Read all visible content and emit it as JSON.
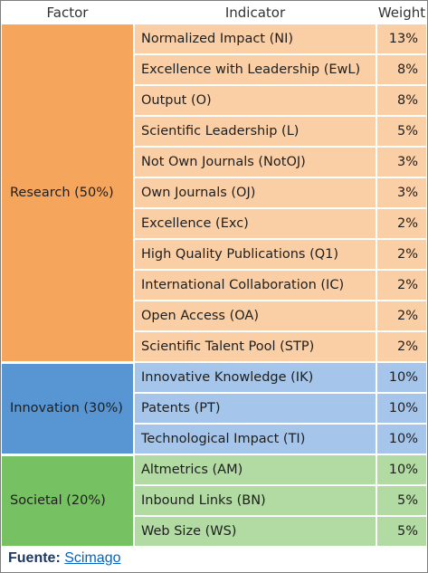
{
  "headers": {
    "factor": "Factor",
    "indicator": "Indicator",
    "weight": "Weight"
  },
  "colors": {
    "research_factor": "#f6a55c",
    "research_rows": "#fbcfa6",
    "innovation_factor": "#5796d2",
    "innovation_rows": "#a5c6ea",
    "societal_factor": "#76c161",
    "societal_rows": "#b1dba2",
    "source_label": "#1f3864",
    "source_link": "#0563c1"
  },
  "groups": [
    {
      "factor": "Research (50%)",
      "rows": [
        {
          "indicator": "Normalized Impact (NI)",
          "weight": "13%"
        },
        {
          "indicator": "Excellence with Leadership (EwL)",
          "weight": "8%"
        },
        {
          "indicator": "Output (O)",
          "weight": "8%"
        },
        {
          "indicator": "Scientific Leadership (L)",
          "weight": "5%"
        },
        {
          "indicator": "Not Own Journals (NotOJ)",
          "weight": "3%"
        },
        {
          "indicator": "Own Journals (OJ)",
          "weight": "3%"
        },
        {
          "indicator": "Excellence (Exc)",
          "weight": "2%"
        },
        {
          "indicator": "High Quality Publications (Q1)",
          "weight": "2%"
        },
        {
          "indicator": "International Collaboration (IC)",
          "weight": "2%"
        },
        {
          "indicator": "Open Access (OA)",
          "weight": "2%"
        },
        {
          "indicator": "Scientific Talent Pool (STP)",
          "weight": "2%"
        }
      ]
    },
    {
      "factor": "Innovation (30%)",
      "rows": [
        {
          "indicator": "Innovative Knowledge (IK)",
          "weight": "10%"
        },
        {
          "indicator": "Patents (PT)",
          "weight": "10%"
        },
        {
          "indicator": "Technological Impact (TI)",
          "weight": "10%"
        }
      ]
    },
    {
      "factor": "Societal (20%)",
      "rows": [
        {
          "indicator": "Altmetrics (AM)",
          "weight": "10%"
        },
        {
          "indicator": "Inbound Links (BN)",
          "weight": "5%"
        },
        {
          "indicator": "Web Size (WS)",
          "weight": "5%"
        }
      ]
    }
  ],
  "source": {
    "label": "Fuente:",
    "link_text": "Scimago"
  }
}
